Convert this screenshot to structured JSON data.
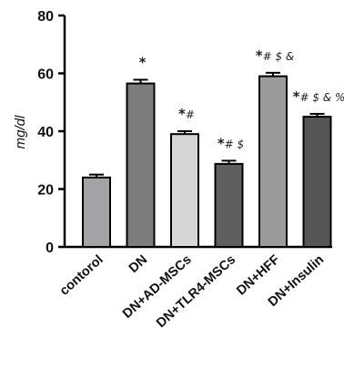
{
  "chart_data": {
    "type": "bar",
    "ylabel": "mg/dl",
    "ylim": [
      0,
      80
    ],
    "yticks": [
      0,
      20,
      40,
      60,
      80
    ],
    "categories": [
      "contorol",
      "DN",
      "DN+AD-MSCs",
      "DN+TLR4-MSCs",
      "DN+HFF",
      "DN+Insulin"
    ],
    "values": [
      24,
      56.5,
      39,
      28.7,
      59,
      45
    ],
    "errors": [
      1.0,
      1.3,
      1.0,
      1.1,
      1.2,
      1.0
    ],
    "significance": [
      "",
      "*",
      "*#",
      "*# $",
      "*# $ &",
      "*# $ & %"
    ],
    "colors": [
      "#a3a3a5",
      "#7d7d7d",
      "#d6d6d6",
      "#5f5f5f",
      "#9b9b9b",
      "#555555"
    ]
  }
}
